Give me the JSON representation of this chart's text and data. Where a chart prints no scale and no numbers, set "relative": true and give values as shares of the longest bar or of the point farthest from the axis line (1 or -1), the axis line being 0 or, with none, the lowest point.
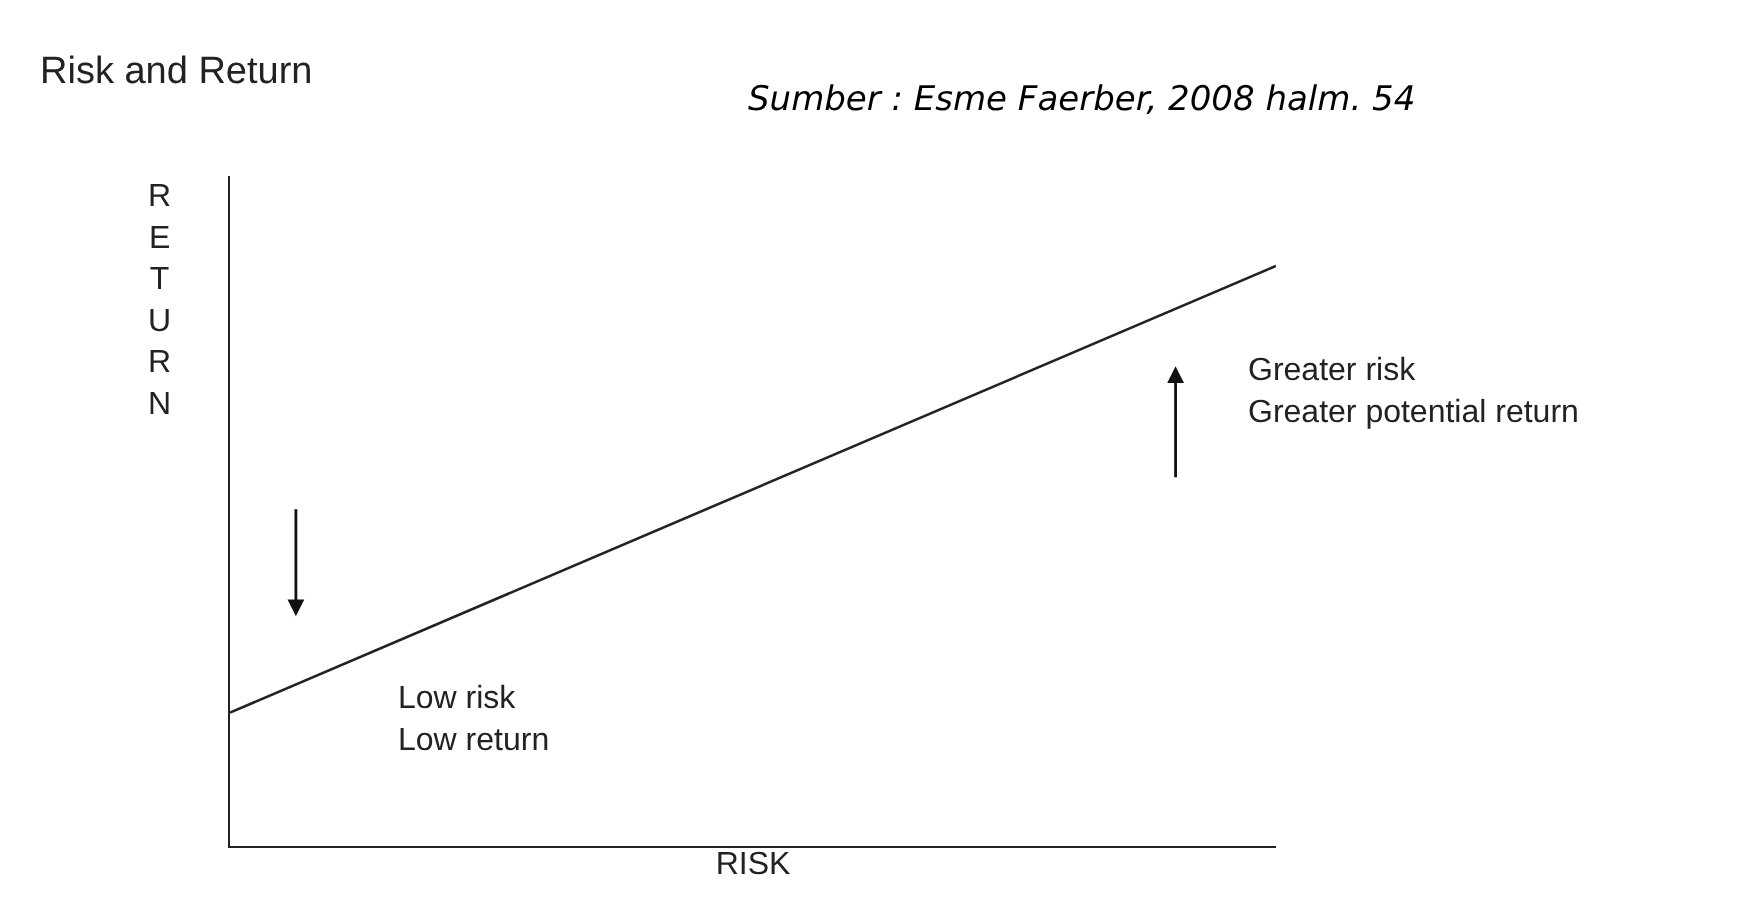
{
  "chart_data": {
    "type": "line",
    "title": "Risk and Return",
    "xlabel": "RISK",
    "ylabel": "RETURN",
    "categories": [
      null,
      null
    ],
    "relative": true,
    "series": [
      {
        "color": "#222222",
        "values": [
          0.23,
          1
        ]
      }
    ],
    "annotations": [
      "Sumber : Esme Faerber, 2008 halm. 54",
      "Greater risk\nGreater potential return",
      "Low risk\nLow return"
    ],
    "marker": "none",
    "line_style": "solid"
  }
}
